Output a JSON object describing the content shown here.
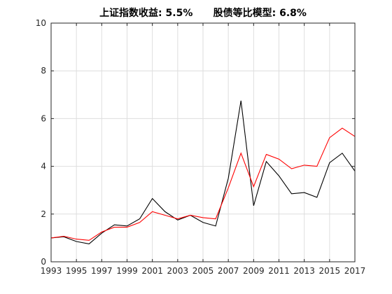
{
  "chart_data": {
    "type": "line",
    "title": "上证指数收益: 5.5%      股债等比模型: 6.8%",
    "xlabel": "",
    "ylabel": "",
    "xlim": [
      1993,
      2017
    ],
    "ylim": [
      0,
      10
    ],
    "grid": true,
    "x": [
      1993,
      1994,
      1995,
      1996,
      1997,
      1998,
      1999,
      2000,
      2001,
      2002,
      2003,
      2004,
      2005,
      2006,
      2007,
      2008,
      2009,
      2010,
      2011,
      2012,
      2013,
      2014,
      2015,
      2016,
      2017
    ],
    "xticks": [
      "1993",
      "1995",
      "1997",
      "1999",
      "2001",
      "2003",
      "2005",
      "2007",
      "2009",
      "2011",
      "2013",
      "2015",
      "2017"
    ],
    "xtick_values": [
      1993,
      1995,
      1997,
      1999,
      2001,
      2003,
      2005,
      2007,
      2009,
      2011,
      2013,
      2015,
      2017
    ],
    "yticks": [
      "0",
      "2",
      "4",
      "6",
      "8",
      "10"
    ],
    "ytick_values": [
      0,
      2,
      4,
      6,
      8,
      10
    ],
    "series": [
      {
        "color": "#000000",
        "values": [
          1.0,
          1.05,
          0.85,
          0.75,
          1.2,
          1.55,
          1.5,
          1.8,
          2.65,
          2.1,
          1.75,
          1.95,
          1.65,
          1.5,
          3.5,
          6.75,
          2.35,
          4.2,
          3.6,
          2.85,
          2.9,
          2.7,
          4.15,
          4.55,
          3.8
        ]
      },
      {
        "color": "#ff0000",
        "values": [
          1.0,
          1.07,
          0.95,
          0.9,
          1.25,
          1.45,
          1.45,
          1.65,
          2.1,
          1.95,
          1.8,
          1.95,
          1.85,
          1.8,
          3.1,
          4.55,
          3.15,
          4.5,
          4.3,
          3.9,
          4.05,
          4.0,
          5.2,
          5.6,
          5.25
        ]
      }
    ]
  }
}
